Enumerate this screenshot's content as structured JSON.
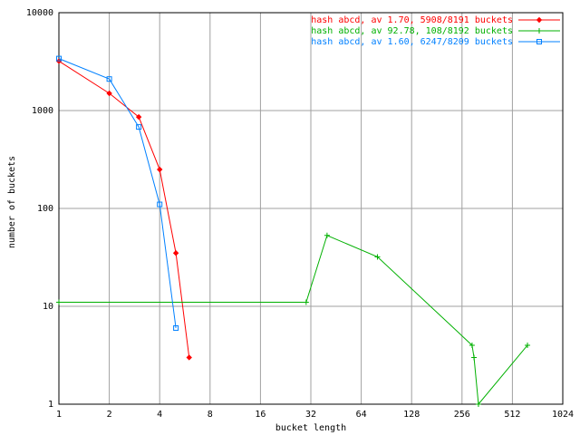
{
  "chart_data": {
    "type": "line",
    "xlabel": "bucket length",
    "ylabel": "number of buckets",
    "xscale": "log2",
    "yscale": "log10",
    "grid": true,
    "legend": "upper right",
    "xlim": [
      1,
      1024
    ],
    "xticks": [
      1,
      2,
      4,
      8,
      16,
      32,
      64,
      128,
      256,
      512,
      1024
    ],
    "ylim": [
      1,
      10000
    ],
    "yticks": [
      1,
      10,
      100,
      1000,
      10000
    ],
    "series": [
      {
        "name": "hash abcd, av 1.70, 5908/8191 buckets",
        "color": "#ff0000",
        "marker": "diamond",
        "x": [
          1,
          2,
          3,
          4,
          5,
          6
        ],
        "values": [
          3200,
          1500,
          860,
          250,
          35,
          3
        ]
      },
      {
        "name": "hash abcd, av 92.78, 108/8192 buckets",
        "color": "#00b000",
        "marker": "plus",
        "x": [
          1,
          30,
          40,
          80,
          294,
          302,
          321,
          630
        ],
        "values": [
          11,
          11,
          53,
          32,
          4,
          3,
          1,
          4
        ]
      },
      {
        "name": "hash abcd, av 1.60, 6247/8209 buckets",
        "color": "#0080ff",
        "marker": "square",
        "x": [
          1,
          2,
          3,
          4,
          5
        ],
        "values": [
          3400,
          2100,
          680,
          110,
          6
        ]
      }
    ]
  }
}
